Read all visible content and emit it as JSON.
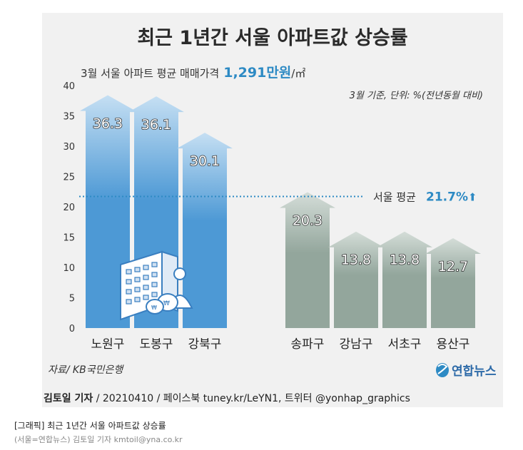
{
  "caption": {
    "title": "[그래픽] 최근 1년간 서울 아파트값 상승률",
    "credit": "(서울=연합뉴스) 김토일 기자 kmtoil@yna.co.kr"
  },
  "colors": {
    "background": "#f1f1f1",
    "blue_bar": "#4d99d5",
    "blue_bar_light": "#c5dff3",
    "gray_bar": "#93a69c",
    "gray_bar_light": "#d4ddd8",
    "accent": "#2d8ac4",
    "average_line": "#2d8ac4"
  },
  "chart_data": {
    "type": "bar",
    "title": "최근 1년간 서울 아파트값 상승률",
    "subtitle_prefix": "3월 서울 아파트 평균 매매가격",
    "subtitle_value": "1,291만원",
    "subtitle_unit": "/㎡",
    "note": "3월 기준, 단위: %(전년동월 대비)",
    "categories": [
      "노원구",
      "도봉구",
      "강북구",
      "송파구",
      "강남구",
      "서초구",
      "용산구"
    ],
    "values": [
      36.3,
      36.1,
      30.1,
      20.3,
      13.8,
      13.8,
      12.7
    ],
    "value_labels": [
      "36.3",
      "36.1",
      "30.1",
      "20.3",
      "13.8",
      "13.8",
      "12.7"
    ],
    "groups": [
      "blue",
      "blue",
      "blue",
      "gray",
      "gray",
      "gray",
      "gray"
    ],
    "ylim": [
      0,
      40
    ],
    "yticks": [
      "0",
      "5",
      "10",
      "15",
      "20",
      "25",
      "30",
      "35",
      "40"
    ],
    "average": {
      "value": 21.7,
      "label": "서울 평균",
      "value_label": "21.7%",
      "arrow": "⬆"
    },
    "source": "자료/ KB국민은행",
    "logo": "연합뉴스",
    "byline_name": "김토일 기자",
    "byline_rest": " / 20210410 / 페이스북 tuney.kr/LeYN1, 트위터 @yonhap_graphics"
  }
}
